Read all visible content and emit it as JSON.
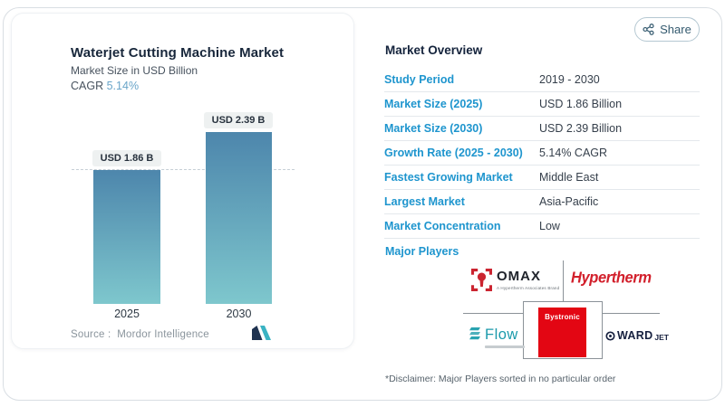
{
  "share": {
    "label": "Share"
  },
  "chart_panel": {
    "title": "Waterjet Cutting Machine Market",
    "subtitle": "Market Size in USD Billion",
    "cagr_label": "CAGR",
    "cagr_value": "5.14%",
    "source_label": "Source :",
    "source_value": "Mordor Intelligence"
  },
  "chart_data": {
    "type": "bar",
    "categories": [
      "2025",
      "2030"
    ],
    "values": [
      1.86,
      2.39
    ],
    "value_labels": [
      "USD 1.86 B",
      "USD 2.39 B"
    ],
    "title": "Waterjet Cutting Machine Market",
    "ylabel": "Market Size in USD Billion",
    "dashed_reference_y": 1.86,
    "bar_gradient_top": "#4d86ac",
    "bar_gradient_bottom": "#7ec7cd",
    "grid": false,
    "legend": "none"
  },
  "overview": {
    "title": "Market Overview",
    "rows": [
      {
        "label": "Study Period",
        "value": "2019 - 2030"
      },
      {
        "label": "Market Size (2025)",
        "value": "USD 1.86 Billion"
      },
      {
        "label": "Market Size (2030)",
        "value": "USD 2.39 Billion"
      },
      {
        "label": "Growth Rate (2025 - 2030)",
        "value": "5.14% CAGR"
      },
      {
        "label": "Fastest Growing Market",
        "value": "Middle East"
      },
      {
        "label": "Largest Market",
        "value": "Asia-Pacific"
      },
      {
        "label": "Market Concentration",
        "value": "Low"
      }
    ],
    "major_players_label": "Major Players",
    "players": {
      "omax": "OMAX",
      "omax_tagline": "A Hypertherm Associates Brand",
      "hypertherm": "Hypertherm",
      "bystronic": "Bystronic",
      "flow": "Flow",
      "wardjet_word": "WARD",
      "wardjet_jet": "JET"
    },
    "disclaimer": "*Disclaimer: Major Players sorted in no particular order"
  },
  "colors": {
    "accent_blue": "#1e95ce",
    "navy": "#14233c",
    "bar_top": "#4d86ac",
    "bar_bottom": "#7ec7cd",
    "brand_red": "#d21f2b",
    "flow_teal": "#1b9aab",
    "wardjet_navy": "#16203f"
  }
}
